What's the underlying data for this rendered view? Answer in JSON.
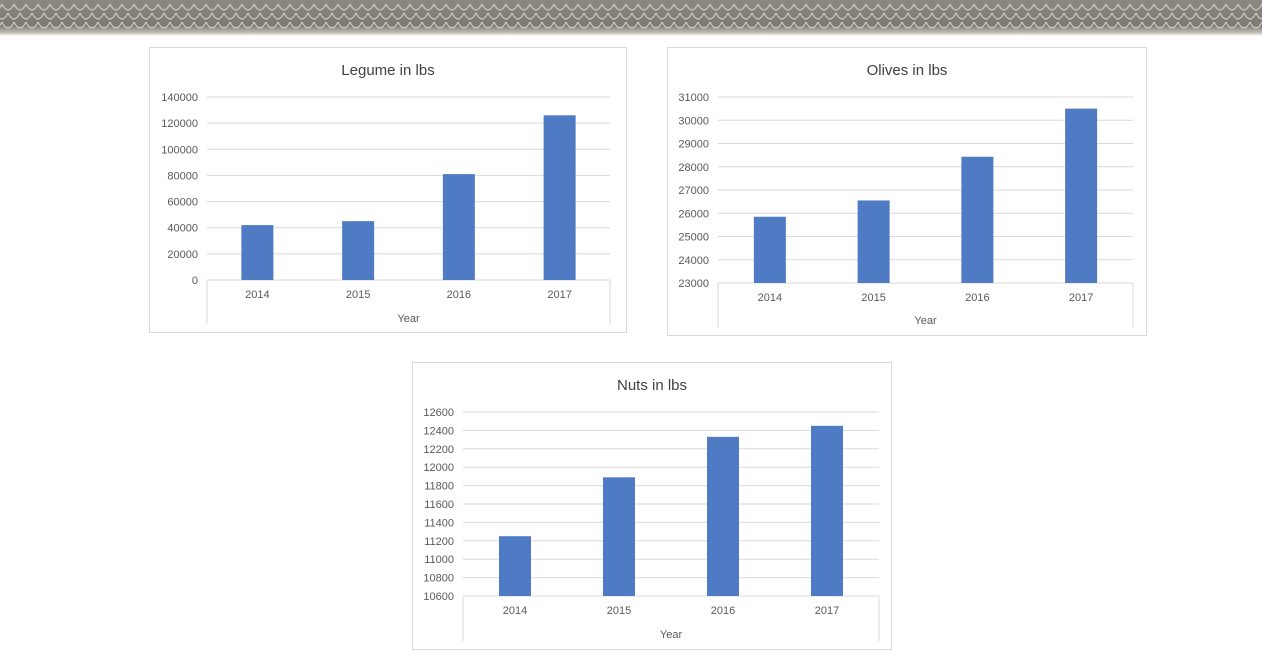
{
  "colors": {
    "bar": "#4f7bc4",
    "grid": "#d9d9d9",
    "axis_text": "#595959",
    "title": "#404040"
  },
  "chart_data": [
    {
      "type": "bar",
      "title": "Legume in lbs",
      "xlabel": "Year",
      "ylabel": "",
      "categories": [
        "2014",
        "2015",
        "2016",
        "2017"
      ],
      "values": [
        42000,
        45000,
        81000,
        126000
      ],
      "ylim": [
        0,
        140000
      ],
      "yticks": [
        "0",
        "20000",
        "40000",
        "60000",
        "80000",
        "100000",
        "120000",
        "140000"
      ],
      "grid": true,
      "legend": "none"
    },
    {
      "type": "bar",
      "title": "Olives in lbs",
      "xlabel": "Year",
      "ylabel": "",
      "categories": [
        "2014",
        "2015",
        "2016",
        "2017"
      ],
      "values": [
        25850,
        26550,
        28430,
        30500
      ],
      "ylim": [
        23000,
        31000
      ],
      "yticks": [
        "23000",
        "24000",
        "25000",
        "26000",
        "27000",
        "28000",
        "29000",
        "30000",
        "31000"
      ],
      "grid": true,
      "legend": "none"
    },
    {
      "type": "bar",
      "title": "Nuts in lbs",
      "xlabel": "Year",
      "ylabel": "",
      "categories": [
        "2014",
        "2015",
        "2016",
        "2017"
      ],
      "values": [
        11250,
        11890,
        12330,
        12450
      ],
      "ylim": [
        10600,
        12600
      ],
      "yticks": [
        "10600",
        "10800",
        "11000",
        "11200",
        "11400",
        "11600",
        "11800",
        "12000",
        "12200",
        "12400",
        "12600"
      ],
      "grid": true,
      "legend": "none"
    }
  ]
}
